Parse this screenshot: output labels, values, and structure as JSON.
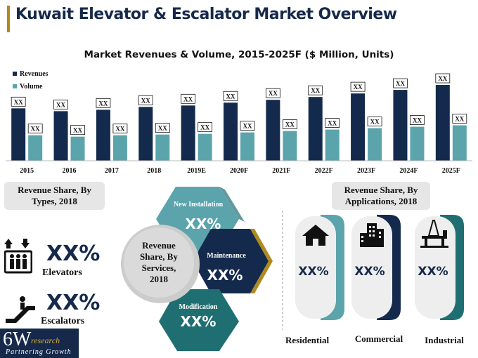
{
  "header": {
    "title": "Kuwait Elevator & Escalator Market Overview"
  },
  "chart_data": {
    "type": "bar",
    "title": "Market Revenues & Volume, 2015-2025F ($ Million, Units)",
    "categories": [
      "2015",
      "2016",
      "2017",
      "2018",
      "2019E",
      "2020F",
      "2021F",
      "2022F",
      "2023F",
      "2024F",
      "2025F"
    ],
    "series": [
      {
        "name": "Revenues",
        "color": "#142a4d",
        "values": [
          74,
          70,
          72,
          76,
          78,
          82,
          86,
          90,
          95,
          100,
          107
        ],
        "labels": [
          "XX",
          "XX",
          "XX",
          "XX",
          "XX",
          "XX",
          "XX",
          "XX",
          "XX",
          "XX",
          "XX"
        ]
      },
      {
        "name": "Volume",
        "color": "#5ba4ac",
        "values": [
          36,
          34,
          36,
          37,
          38,
          40,
          42,
          44,
          46,
          48,
          50
        ],
        "labels": [
          "XX",
          "XX",
          "XX",
          "XX",
          "XX",
          "XX",
          "XX",
          "XX",
          "XX",
          "XX",
          "XX"
        ]
      }
    ],
    "legend_position": "top-left",
    "grid": false
  },
  "types": {
    "heading_line1": "Revenue Share, By",
    "heading_line2": "Types, 2018",
    "items": [
      {
        "value": "XX%",
        "label": "Elevators",
        "icon": "elevator-icon"
      },
      {
        "value": "XX%",
        "label": "Escalators",
        "icon": "escalator-icon"
      }
    ]
  },
  "services": {
    "center_line1": "Revenue",
    "center_line2": "Share, By",
    "center_line3": "Services,",
    "center_line4": "2018",
    "items": [
      {
        "name": "New Installation",
        "value": "XX%",
        "color": "#5ba4ac"
      },
      {
        "name": "Maintenance",
        "value": "XX%",
        "color": "#142a4d"
      },
      {
        "name": "Modification",
        "value": "XX%",
        "color": "#1f6f72"
      }
    ]
  },
  "applications": {
    "heading_line1": "Revenue Share, By",
    "heading_line2": "Applications, 2018",
    "items": [
      {
        "name": "Residential",
        "value": "XX%",
        "icon": "house-icon",
        "accent": "#5ba4ac"
      },
      {
        "name": "Commercial",
        "value": "XX%",
        "icon": "office-building-icon",
        "accent": "#142a4d"
      },
      {
        "name": "Industrial",
        "value": "XX%",
        "icon": "oil-rig-icon",
        "accent": "#1f6f72"
      }
    ]
  },
  "logo": {
    "main": "6W",
    "sub": "research",
    "tagline": "Partnering Growth"
  }
}
